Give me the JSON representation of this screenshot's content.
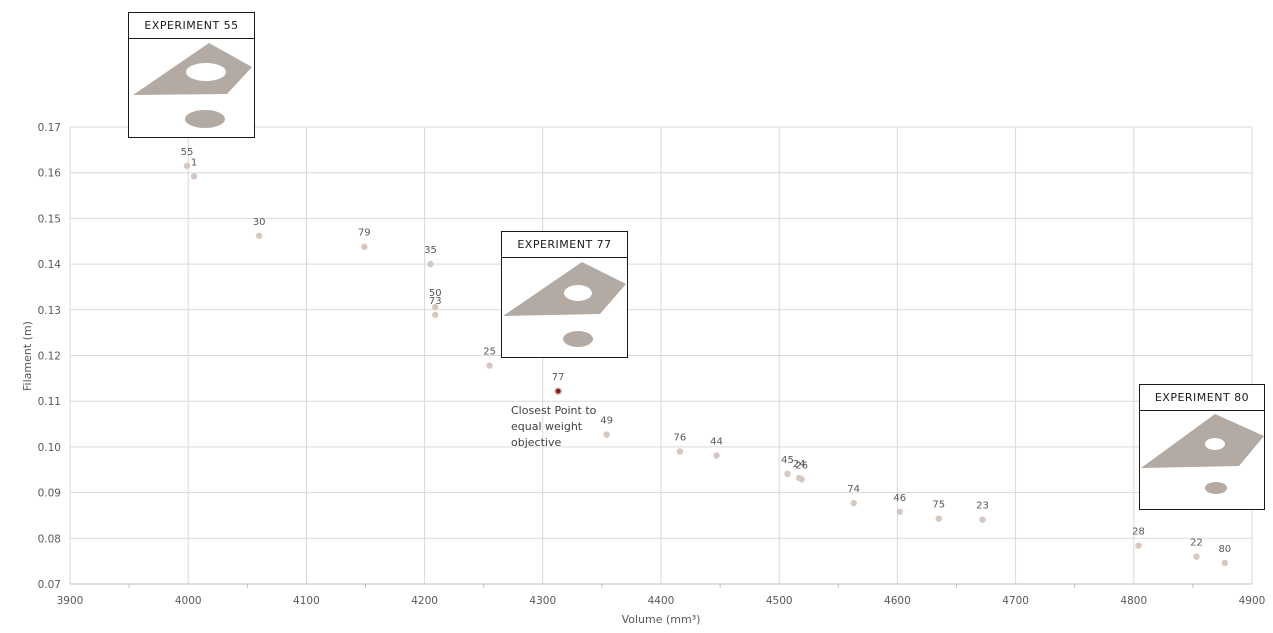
{
  "chart_data": {
    "type": "scatter",
    "title": "",
    "xlabel": "Volume (mm³)",
    "ylabel": "Filament (m)",
    "xlim": [
      3900,
      4900
    ],
    "ylim": [
      0.07,
      0.17
    ],
    "x_ticks": [
      "3900",
      "4000",
      "4100",
      "4200",
      "4300",
      "4400",
      "4500",
      "4600",
      "4700",
      "4800",
      "4900"
    ],
    "y_ticks": [
      "0.07",
      "0.08",
      "0.09",
      "0.10",
      "0.11",
      "0.12",
      "0.13",
      "0.14",
      "0.15",
      "0.16",
      "0.17"
    ],
    "grid": true,
    "marker_color": "#d6c8bf",
    "highlight_color": "#8b1a1a",
    "points": [
      {
        "label": "55",
        "x": 3999,
        "y": 0.1615
      },
      {
        "label": "1",
        "x": 4005,
        "y": 0.1592
      },
      {
        "label": "30",
        "x": 4060,
        "y": 0.1462
      },
      {
        "label": "79",
        "x": 4149,
        "y": 0.1438
      },
      {
        "label": "35",
        "x": 4205,
        "y": 0.14
      },
      {
        "label": "50",
        "x": 4209,
        "y": 0.1306
      },
      {
        "label": "73",
        "x": 4209,
        "y": 0.1289
      },
      {
        "label": "25",
        "x": 4255,
        "y": 0.1178
      },
      {
        "label": "77",
        "x": 4313,
        "y": 0.1122,
        "highlight": true
      },
      {
        "label": "49",
        "x": 4354,
        "y": 0.1027
      },
      {
        "label": "76",
        "x": 4416,
        "y": 0.099
      },
      {
        "label": "44",
        "x": 4447,
        "y": 0.0981
      },
      {
        "label": "45",
        "x": 4507,
        "y": 0.0941
      },
      {
        "label": "24",
        "x": 4517,
        "y": 0.0932
      },
      {
        "label": "26",
        "x": 4519,
        "y": 0.0929
      },
      {
        "label": "74",
        "x": 4563,
        "y": 0.0877
      },
      {
        "label": "46",
        "x": 4602,
        "y": 0.0858
      },
      {
        "label": "75",
        "x": 4635,
        "y": 0.0843
      },
      {
        "label": "23",
        "x": 4672,
        "y": 0.0841
      },
      {
        "label": "28",
        "x": 4804,
        "y": 0.0784
      },
      {
        "label": "22",
        "x": 4853,
        "y": 0.076
      },
      {
        "label": "80",
        "x": 4877,
        "y": 0.0746
      }
    ],
    "annotation": "Closest Point to equal weight objective"
  },
  "insets": [
    {
      "title": "EXPERIMENT 55"
    },
    {
      "title": "EXPERIMENT 77"
    },
    {
      "title": "EXPERIMENT 80"
    }
  ],
  "part_color": "#b3aaa3",
  "hole_color": "#ffffff"
}
